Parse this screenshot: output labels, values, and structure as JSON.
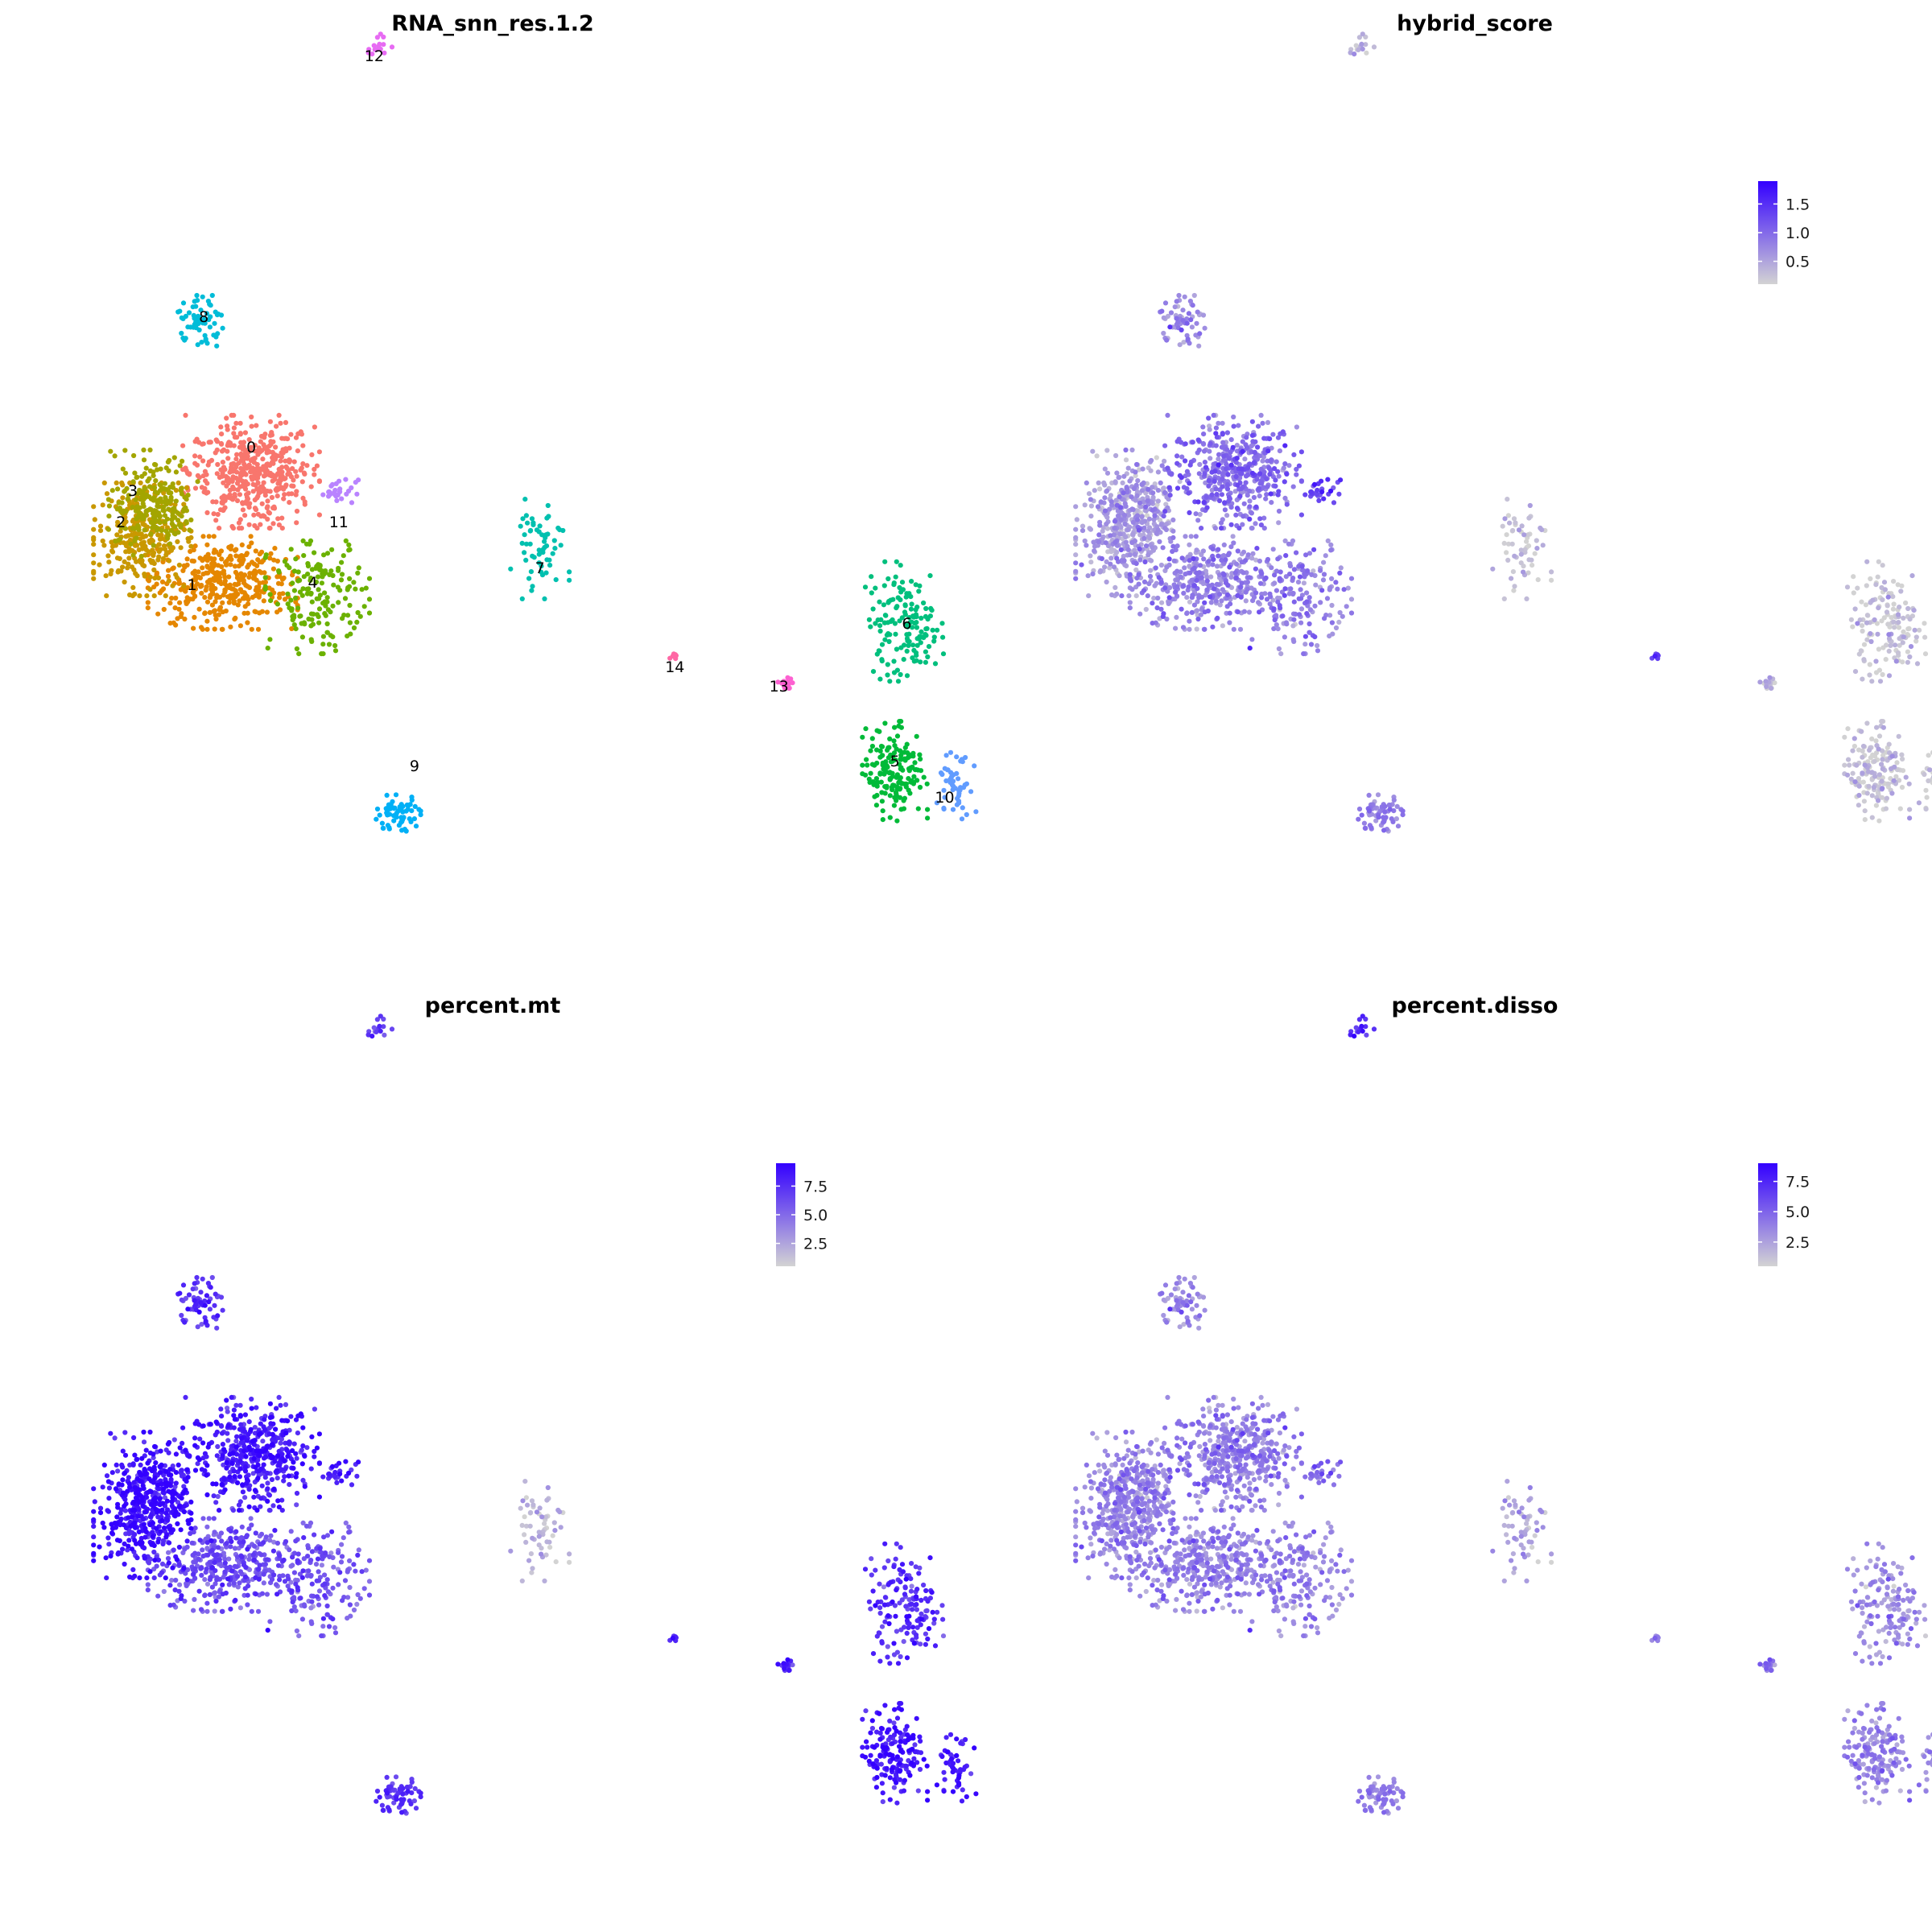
{
  "colors": {
    "low": "#d3d3d3",
    "high": "#3300ff",
    "clusters": [
      "#F8766D",
      "#E58700",
      "#C99800",
      "#A3A500",
      "#6BB100",
      "#00BA38",
      "#00BF7D",
      "#00C0AF",
      "#00BCD8",
      "#00B0F6",
      "#619CFF",
      "#B983FF",
      "#E76BF3",
      "#FD61D1",
      "#FF67A4"
    ]
  },
  "chart_data": [
    {
      "type": "scatter",
      "subtype": "umap-categorical",
      "title": "RNA_snn_res.1.2",
      "legend": "none",
      "grid": false,
      "clusters": [
        {
          "id": "0",
          "label": "0",
          "center": [
            -3.4,
            4.8
          ],
          "spread": [
            2.1,
            1.7
          ],
          "cells": 450
        },
        {
          "id": "1",
          "label": "1",
          "center": [
            -4.6,
            0.2
          ],
          "spread": [
            2.3,
            1.4
          ],
          "cells": 380
        },
        {
          "id": "2",
          "label": "2",
          "center": [
            -8.0,
            2.0
          ],
          "spread": [
            1.5,
            1.7
          ],
          "cells": 260
        },
        {
          "id": "3",
          "label": "3",
          "center": [
            -7.5,
            3.5
          ],
          "spread": [
            1.4,
            1.6
          ],
          "cells": 220
        },
        {
          "id": "4",
          "label": "4",
          "center": [
            -0.6,
            -0.4
          ],
          "spread": [
            1.6,
            1.7
          ],
          "cells": 170
        },
        {
          "id": "5",
          "label": "5",
          "center": [
            23.8,
            -7.6
          ],
          "spread": [
            1.0,
            1.5
          ],
          "cells": 170
        },
        {
          "id": "6",
          "label": "6",
          "center": [
            24.2,
            -1.4
          ],
          "spread": [
            1.2,
            1.8
          ],
          "cells": 150
        },
        {
          "id": "7",
          "label": "7",
          "center": [
            8.8,
            1.6
          ],
          "spread": [
            0.9,
            1.5
          ],
          "cells": 60
        },
        {
          "id": "8",
          "label": "8",
          "center": [
            -5.5,
            11.0
          ],
          "spread": [
            0.9,
            0.8
          ],
          "cells": 60
        },
        {
          "id": "9",
          "label": "9",
          "center": [
            2.8,
            -9.4
          ],
          "spread": [
            0.7,
            0.6
          ],
          "cells": 65
        },
        {
          "id": "10",
          "label": "10",
          "center": [
            26.4,
            -8.2
          ],
          "spread": [
            0.6,
            1.0
          ],
          "cells": 50
        },
        {
          "id": "11",
          "label": "11",
          "center": [
            0.3,
            4.0
          ],
          "spread": [
            0.6,
            0.35
          ],
          "cells": 28
        },
        {
          "id": "12",
          "label": "12",
          "center": [
            2.0,
            22.5
          ],
          "spread": [
            0.4,
            0.4
          ],
          "cells": 15
        },
        {
          "id": "13",
          "label": "13",
          "center": [
            19.2,
            -4.0
          ],
          "spread": [
            0.25,
            0.2
          ],
          "cells": 20
        },
        {
          "id": "14",
          "label": "14",
          "center": [
            14.5,
            -2.8
          ],
          "spread": [
            0.15,
            0.1
          ],
          "cells": 6
        }
      ],
      "label_positions": {
        "0": [
          -3.4,
          5.6
        ],
        "1": [
          -5.9,
          -0.1
        ],
        "2": [
          -8.9,
          2.5
        ],
        "3": [
          -8.4,
          3.8
        ],
        "4": [
          -0.8,
          0.0
        ],
        "5": [
          23.8,
          -7.4
        ],
        "6": [
          24.3,
          -1.7
        ],
        "7": [
          8.8,
          0.6
        ],
        "8": [
          -5.4,
          11.0
        ],
        "9": [
          3.5,
          -7.6
        ],
        "10": [
          25.9,
          -8.9
        ],
        "11": [
          0.3,
          2.5
        ],
        "12": [
          1.8,
          21.8
        ],
        "13": [
          18.9,
          -4.3
        ],
        "14": [
          14.5,
          -3.5
        ]
      }
    },
    {
      "type": "scatter",
      "subtype": "umap-feature",
      "title": "hybrid_score",
      "legend": "right",
      "grid": false,
      "range": [
        0.1,
        1.9
      ],
      "ticks": [
        {
          "v": 0.5,
          "label": "0.5"
        },
        {
          "v": 1.0,
          "label": "1.0"
        },
        {
          "v": 1.5,
          "label": "1.5"
        }
      ],
      "cluster_mean": {
        "0": 0.95,
        "1": 0.75,
        "2": 0.55,
        "3": 0.55,
        "4": 0.8,
        "5": 0.2,
        "6": 0.2,
        "7": 0.2,
        "8": 0.75,
        "9": 0.75,
        "10": 0.2,
        "11": 1.3,
        "12": 0.3,
        "13": 0.35,
        "14": 1.3
      }
    },
    {
      "type": "scatter",
      "subtype": "umap-feature",
      "title": "percent.mt",
      "legend": "right",
      "grid": false,
      "range": [
        0.5,
        9.5
      ],
      "ticks": [
        {
          "v": 2.5,
          "label": "2.5"
        },
        {
          "v": 5.0,
          "label": "5.0"
        },
        {
          "v": 7.5,
          "label": "7.5"
        }
      ],
      "cluster_mean": {
        "0": 8.3,
        "1": 6.0,
        "2": 8.8,
        "3": 8.8,
        "4": 5.8,
        "5": 8.5,
        "6": 7.5,
        "7": 1.5,
        "8": 7.5,
        "9": 7.0,
        "10": 8.7,
        "11": 8.0,
        "12": 6.5,
        "13": 8.0,
        "14": 7.5
      }
    },
    {
      "type": "scatter",
      "subtype": "umap-feature",
      "title": "percent.disso",
      "legend": "right",
      "grid": false,
      "range": [
        0.5,
        9.0
      ],
      "ticks": [
        {
          "v": 2.5,
          "label": "2.5"
        },
        {
          "v": 5.0,
          "label": "5.0"
        },
        {
          "v": 7.5,
          "label": "7.5"
        }
      ],
      "cluster_mean": {
        "0": 3.8,
        "1": 3.6,
        "2": 3.5,
        "3": 3.5,
        "4": 3.6,
        "5": 3.5,
        "6": 3.2,
        "7": 2.2,
        "8": 3.6,
        "9": 3.6,
        "10": 3.6,
        "11": 4.5,
        "12": 7.0,
        "13": 4.5,
        "14": 3.5
      }
    }
  ]
}
